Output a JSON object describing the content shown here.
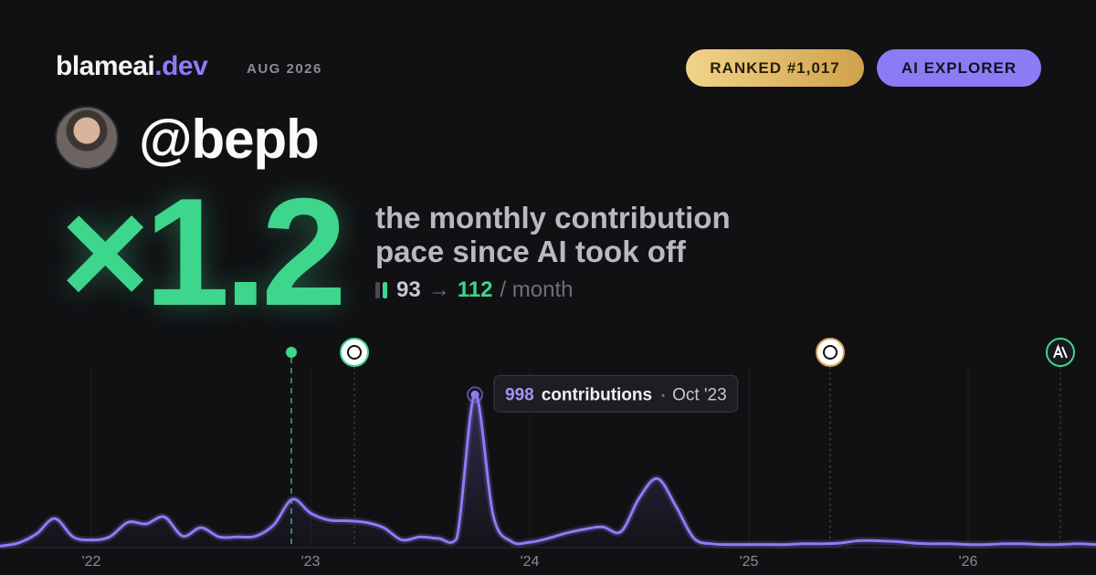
{
  "header": {
    "brand": "blameai",
    "brand_suffix": ".dev",
    "date": "AUG 2026",
    "rank": "RANKED #1,017",
    "tag": "AI EXPLORER"
  },
  "profile": {
    "handle": "@bepb"
  },
  "headline": {
    "multiplier": "×1.2",
    "line1": "the monthly contribution",
    "line2": "pace since AI took off",
    "from": "93",
    "arrow": "→",
    "to": "112",
    "unit": "/ month"
  },
  "chart_data": {
    "type": "area-line",
    "x": [
      2021.5833,
      2021.6667,
      2021.75,
      2021.8333,
      2021.9167,
      2022,
      2022.0833,
      2022.1667,
      2022.25,
      2022.3333,
      2022.4167,
      2022.5,
      2022.5833,
      2022.6667,
      2022.75,
      2022.8333,
      2022.9167,
      2023,
      2023.0833,
      2023.1667,
      2023.25,
      2023.3333,
      2023.4167,
      2023.5,
      2023.5833,
      2023.6667,
      2023.75,
      2023.8333,
      2023.9167,
      2024,
      2024.0833,
      2024.1667,
      2024.25,
      2024.3333,
      2024.4167,
      2024.5,
      2024.5833,
      2024.6667,
      2024.75,
      2024.8333,
      2024.9167,
      2025,
      2025.0833,
      2025.1667,
      2025.25,
      2025.3333,
      2025.4167,
      2025.5,
      2025.5833,
      2025.6667,
      2025.75,
      2025.8333,
      2025.9167,
      2026,
      2026.0833,
      2026.1667,
      2026.25,
      2026.3333,
      2026.4167,
      2026.5,
      2026.5833
    ],
    "series": [
      {
        "name": "contributions",
        "color": "#8b7cf6",
        "values": [
          10,
          30,
          90,
          190,
          70,
          50,
          70,
          165,
          155,
          200,
          75,
          130,
          70,
          70,
          75,
          150,
          315,
          225,
          180,
          175,
          165,
          130,
          50,
          70,
          60,
          60,
          998,
          210,
          40,
          35,
          60,
          95,
          120,
          135,
          105,
          325,
          450,
          270,
          60,
          25,
          20,
          20,
          20,
          20,
          25,
          25,
          30,
          45,
          45,
          40,
          30,
          25,
          25,
          20,
          20,
          25,
          25,
          20,
          20,
          25,
          20
        ]
      }
    ],
    "xlim": [
      2021.5833,
      2026.5833
    ],
    "ylim": [
      0,
      1000
    ],
    "xticks": [
      {
        "value": 2022,
        "label": "'22"
      },
      {
        "value": 2023,
        "label": "'23"
      },
      {
        "value": 2024,
        "label": "'24"
      },
      {
        "value": 2025,
        "label": "'25"
      },
      {
        "value": 2026,
        "label": "'26"
      }
    ],
    "grid": true,
    "tooltip": {
      "index": 26,
      "unit": "contributions",
      "date": "Oct '23"
    }
  }
}
